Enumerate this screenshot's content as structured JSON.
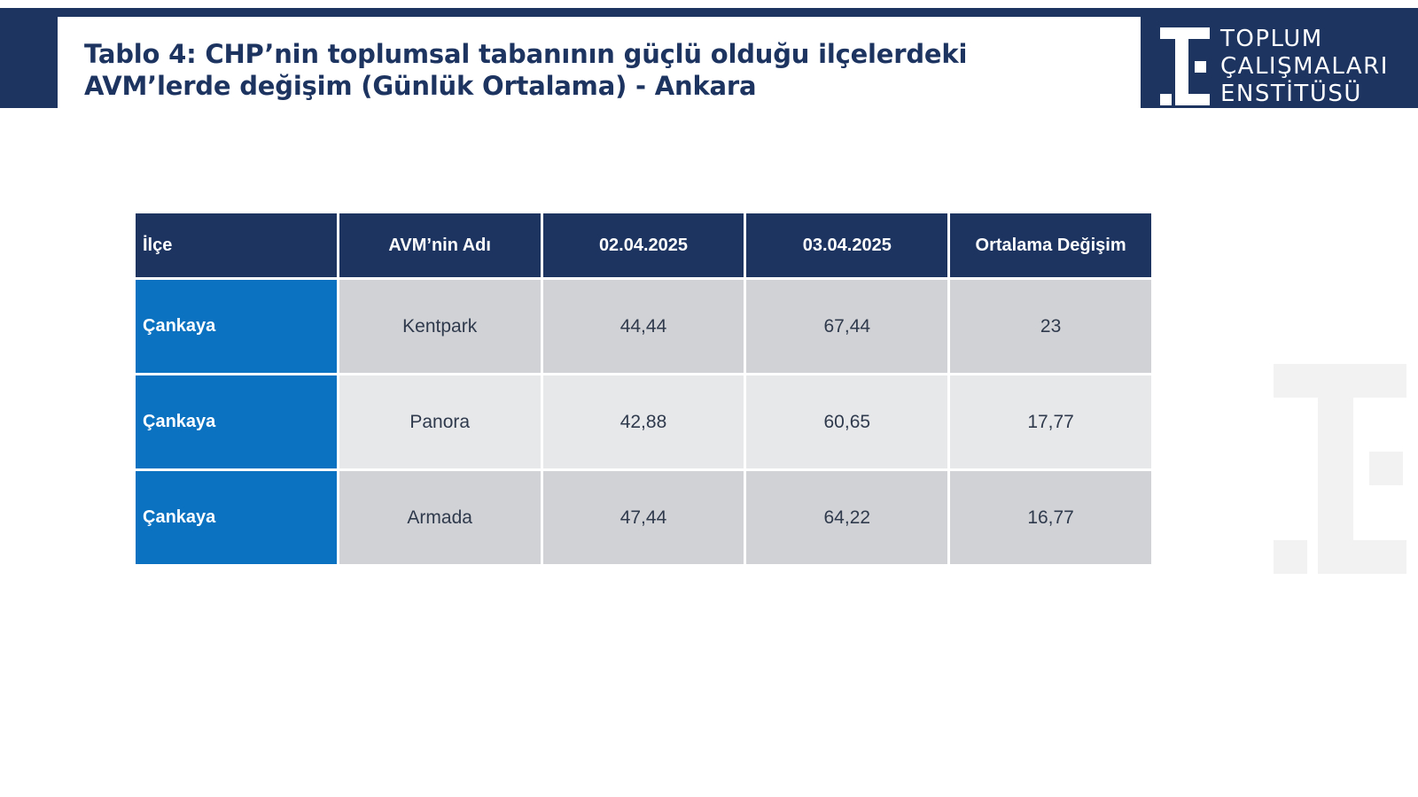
{
  "header": {
    "title_line1": "Tablo 4: CHP’nin toplumsal tabanının güçlü olduğu ilçelerdeki",
    "title_line2": "AVM’lerde değişim (Günlük Ortalama) - Ankara",
    "background_color": "#1d3461"
  },
  "logo": {
    "lines": [
      "TOPLUM",
      "ÇALIŞMALARI",
      "ENSTİTÜSÜ"
    ]
  },
  "table": {
    "columns": [
      "İlçe",
      "AVM’nin Adı",
      "02.04.2025",
      "03.04.2025",
      "Ortalama Değişim"
    ],
    "rows": [
      {
        "district": "Çankaya",
        "mall": "Kentpark",
        "d1": "44,44",
        "d2": "67,44",
        "change": "23"
      },
      {
        "district": "Çankaya",
        "mall": "Panora",
        "d1": "42,88",
        "d2": "60,65",
        "change": "17,77"
      },
      {
        "district": "Çankaya",
        "mall": "Armada",
        "d1": "47,44",
        "d2": "64,22",
        "change": "16,77"
      }
    ],
    "colors": {
      "header": "#1d3461",
      "district": "#0a72c1",
      "row_dark": "#d1d2d5",
      "row_light": "#e7e8ea"
    }
  },
  "icons": [
    "institute-logo-icon",
    "institute-watermark-icon"
  ]
}
